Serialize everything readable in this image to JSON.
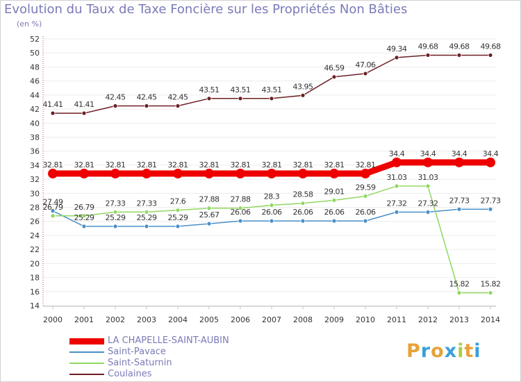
{
  "title": "Evolution du Taux de Taxe Foncière sur les Propriétés Non Bâties",
  "unit": "(en %)",
  "logo": {
    "text": "Proxiti",
    "colors": [
      "#e8a23a",
      "#3aa0d8",
      "#e8a23a",
      "#3aa0d8",
      "#a8d040",
      "#e8a23a",
      "#3aa0d8"
    ]
  },
  "chart_data": {
    "type": "line",
    "title": "Evolution du Taux de Taxe Foncière sur les Propriétés Non Bâties",
    "ylabel": "(en %)",
    "ylim": [
      14,
      52
    ],
    "yticks": [
      14,
      16,
      18,
      20,
      22,
      24,
      26,
      28,
      30,
      32,
      34,
      36,
      38,
      40,
      42,
      44,
      46,
      48,
      50,
      52
    ],
    "categories": [
      "2000",
      "2001",
      "2002",
      "2003",
      "2004",
      "2005",
      "2006",
      "2007",
      "2008",
      "2009",
      "2010",
      "2011",
      "2012",
      "2013",
      "2014"
    ],
    "series": [
      {
        "name": "Coulaines",
        "color": "#6b1f24",
        "width": 1.5,
        "marker": 3,
        "values": [
          41.41,
          41.41,
          42.45,
          42.45,
          42.45,
          43.51,
          43.51,
          43.51,
          43.95,
          46.59,
          47.06,
          49.34,
          49.68,
          49.68,
          49.68
        ],
        "labels": [
          "41.41",
          "41.41",
          "42.45",
          "42.45",
          "42.45",
          "43.51",
          "43.51",
          "43.51",
          "43.95",
          "46.59",
          "47.06",
          "49.34",
          "49.68",
          "49.68",
          "49.68"
        ]
      },
      {
        "name": "LA CHAPELLE-SAINT-AUBIN",
        "color": "#ee0000",
        "width": 9,
        "marker": 7,
        "values": [
          32.81,
          32.81,
          32.81,
          32.81,
          32.81,
          32.81,
          32.81,
          32.81,
          32.81,
          32.81,
          32.81,
          34.4,
          34.4,
          34.4,
          34.4
        ],
        "labels": [
          "32.81",
          "32.81",
          "32.81",
          "32.81",
          "32.81",
          "32.81",
          "32.81",
          "32.81",
          "32.81",
          "32.81",
          "32.81",
          "34.4",
          "34.4",
          "34.4",
          "34.4"
        ]
      },
      {
        "name": "Saint-Pavace",
        "color": "#4a8fc8",
        "width": 1.5,
        "marker": 3,
        "values": [
          27.49,
          25.29,
          25.29,
          25.29,
          25.29,
          25.67,
          26.06,
          26.06,
          26.06,
          26.06,
          26.06,
          27.32,
          27.32,
          27.73,
          27.73
        ],
        "labels": [
          "27.49",
          "25.29",
          "25.29",
          "25.29",
          "25.29",
          "25.67",
          "26.06",
          "26.06",
          "26.06",
          "26.06",
          "26.06",
          "27.32",
          "27.32",
          "27.73",
          "27.73"
        ]
      },
      {
        "name": "Saint-Saturnin",
        "color": "#90d860",
        "width": 1.5,
        "marker": 3,
        "values": [
          26.79,
          26.79,
          27.33,
          27.33,
          27.6,
          27.88,
          27.88,
          28.3,
          28.58,
          29.01,
          29.59,
          31.03,
          31.03,
          15.82,
          15.82
        ],
        "labels": [
          "26.79",
          "26.79",
          "27.33",
          "27.33",
          "27.6",
          "27.88",
          "27.88",
          "28.3",
          "28.58",
          "29.01",
          "29.59",
          "31.03",
          "31.03",
          "15.82",
          "15.82"
        ]
      }
    ],
    "legend": [
      {
        "name": "LA CHAPELLE-SAINT-AUBIN",
        "color": "#ee0000",
        "thickness": 9
      },
      {
        "name": "Saint-Pavace",
        "color": "#4a8fc8",
        "thickness": 2
      },
      {
        "name": "Saint-Saturnin",
        "color": "#90d860",
        "thickness": 2
      },
      {
        "name": "Coulaines",
        "color": "#6b1f24",
        "thickness": 2
      }
    ]
  }
}
